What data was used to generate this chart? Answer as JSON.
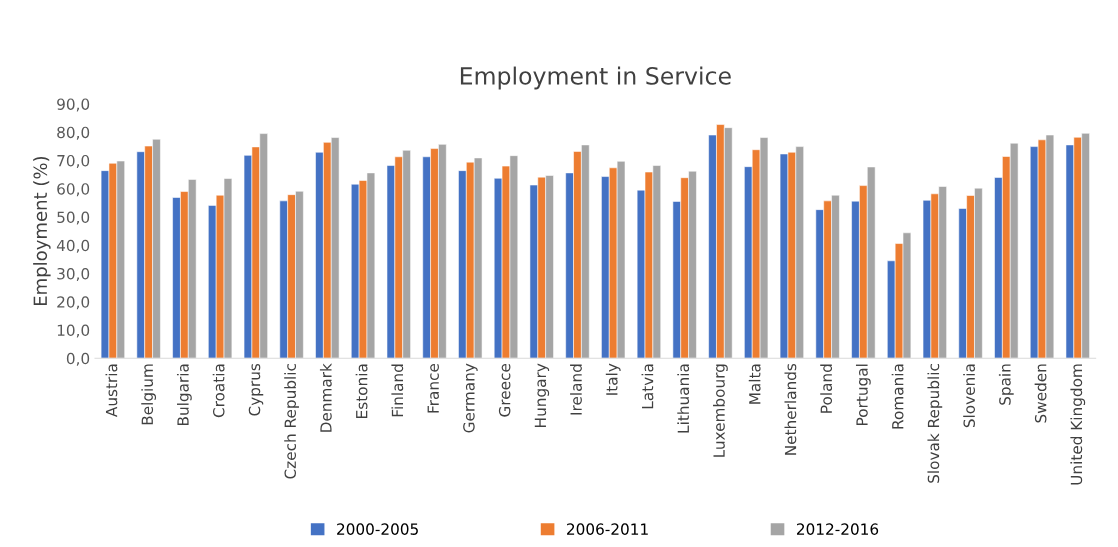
{
  "chart_data": {
    "type": "bar",
    "title": "Employment in Service",
    "ylabel": "Employment (%)",
    "categories": [
      "Austria",
      "Belgium",
      "Bulgaria",
      "Croatia",
      "Cyprus",
      "Czech Republic",
      "Denmark",
      "Estonia",
      "Finland",
      "France",
      "Germany",
      "Greece",
      "Hungary",
      "Ireland",
      "Italy",
      "Latvia",
      "Lithuania",
      "Luxembourg",
      "Malta",
      "Netherlands",
      "Poland",
      "Portugal",
      "Romania",
      "Slovak Republic",
      "Slovenia",
      "Spain",
      "Sweden",
      "United Kingdom"
    ],
    "series": [
      {
        "name": "2000-2005",
        "color": "#4472c4",
        "values": [
          66.4,
          73.1,
          56.9,
          54.1,
          71.8,
          55.7,
          72.9,
          61.6,
          68.2,
          71.3,
          66.4,
          63.7,
          61.3,
          65.6,
          64.3,
          59.5,
          55.5,
          79.0,
          67.8,
          72.3,
          52.6,
          55.6,
          34.5,
          55.9,
          53.0,
          64.0,
          74.9,
          75.5
        ]
      },
      {
        "name": "2006-2011",
        "color": "#ed7d31",
        "values": [
          69.0,
          75.1,
          59.0,
          57.7,
          74.8,
          57.9,
          76.4,
          62.9,
          71.3,
          74.2,
          69.4,
          68.0,
          64.1,
          73.2,
          67.4,
          65.9,
          63.9,
          82.7,
          73.8,
          72.9,
          55.7,
          61.1,
          40.6,
          58.2,
          57.6,
          71.4,
          77.3,
          78.2
        ]
      },
      {
        "name": "2012-2016",
        "color": "#a5a5a5",
        "values": [
          69.8,
          77.5,
          63.3,
          63.6,
          79.5,
          59.1,
          78.1,
          65.6,
          73.6,
          75.7,
          70.9,
          71.7,
          64.7,
          75.5,
          69.7,
          68.2,
          66.2,
          81.6,
          78.1,
          74.9,
          57.7,
          67.7,
          44.4,
          60.8,
          60.2,
          76.1,
          79.0,
          79.6
        ]
      }
    ],
    "ylim": [
      0,
      90
    ],
    "yticks": [
      {
        "value": 0,
        "label": "0,0"
      },
      {
        "value": 10,
        "label": "10,0"
      },
      {
        "value": 20,
        "label": "20,0"
      },
      {
        "value": 30,
        "label": "30,0"
      },
      {
        "value": 40,
        "label": "40,0"
      },
      {
        "value": 50,
        "label": "50,0"
      },
      {
        "value": 60,
        "label": "60,0"
      },
      {
        "value": 70,
        "label": "70,0"
      },
      {
        "value": 80,
        "label": "80,0"
      },
      {
        "value": 90,
        "label": "90,0"
      }
    ],
    "grid": false,
    "legend": "bottom"
  }
}
